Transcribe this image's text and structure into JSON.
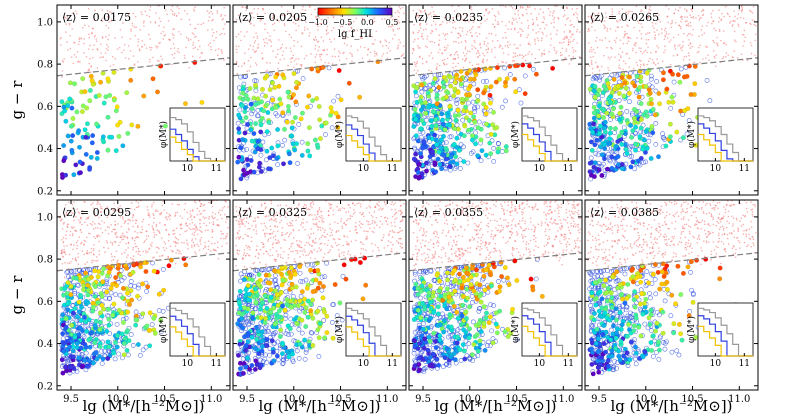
{
  "chart_data": {
    "type": "scatter",
    "layout": "2x4 panel grid, each panel with an inset histogram",
    "xlabel": "lg (M*/[h⁻²M⊙])",
    "ylabel": "g − r",
    "xlim": [
      9.35,
      11.2
    ],
    "ylim": [
      0.18,
      1.08
    ],
    "xticks": [
      "9.5",
      "10.0",
      "10.5",
      "11.0"
    ],
    "yticks": [
      "0.2",
      "0.4",
      "0.6",
      "0.8",
      "1.0"
    ],
    "colorbar": {
      "label": "lg f_HI",
      "colormap": "rainbow (red→orange→yellow→green→cyan→blue→purple)",
      "range": [
        -1.0,
        0.5
      ],
      "ticks": [
        "−1.0",
        "−0.5",
        "0.0",
        "0.5"
      ],
      "placement": "top of second panel"
    },
    "separator_line": {
      "style": "dashed",
      "color": "#808080",
      "x": [
        9.35,
        11.2
      ],
      "y": [
        0.745,
        0.83
      ]
    },
    "red_cloud": {
      "color": "#f07070",
      "y_range": [
        0.76,
        1.05
      ]
    },
    "inset": {
      "ylabel": "φ(M*)",
      "xticks": [
        "10",
        "11"
      ],
      "xlim": [
        9.4,
        11.3
      ],
      "ylim": [
        0,
        1
      ],
      "steps_x": [
        9.4,
        9.6,
        9.8,
        10.0,
        10.2,
        10.4,
        10.6,
        10.8,
        11.0,
        11.3
      ],
      "series_colors": {
        "all": "#999999",
        "blue": "#3040e0",
        "yellow": "#f0c000"
      }
    },
    "panels": [
      {
        "title": "⟨z⟩ = 0.0175",
        "n_red": 320,
        "n_col": 110,
        "n_open": 0,
        "inset": {
          "all": [
            0.82,
            0.78,
            0.7,
            0.55,
            0.35,
            0.18,
            0.05,
            0.0,
            0.0
          ],
          "blue": [
            0.6,
            0.5,
            0.38,
            0.22,
            0.08,
            0.0,
            0.0,
            0.0,
            0.0
          ],
          "yellow": [
            0.45,
            0.35,
            0.22,
            0.12,
            0.0,
            0.0,
            0.0,
            0.0,
            0.0
          ]
        }
      },
      {
        "title": "⟨z⟩ = 0.0205",
        "n_red": 380,
        "n_col": 180,
        "n_open": 90,
        "inset": {
          "all": [
            0.85,
            0.82,
            0.75,
            0.62,
            0.45,
            0.28,
            0.12,
            0.0,
            0.0
          ],
          "blue": [
            0.68,
            0.6,
            0.48,
            0.32,
            0.15,
            0.0,
            0.0,
            0.0,
            0.0
          ],
          "yellow": [
            0.48,
            0.38,
            0.26,
            0.12,
            0.0,
            0.0,
            0.0,
            0.0,
            0.0
          ]
        }
      },
      {
        "title": "⟨z⟩ = 0.0235",
        "n_red": 520,
        "n_col": 300,
        "n_open": 230,
        "inset": {
          "all": [
            0.85,
            0.82,
            0.76,
            0.64,
            0.48,
            0.3,
            0.14,
            0.0,
            0.0
          ],
          "blue": [
            0.7,
            0.62,
            0.5,
            0.36,
            0.18,
            0.0,
            0.0,
            0.0,
            0.0
          ],
          "yellow": [
            0.5,
            0.4,
            0.28,
            0.14,
            0.0,
            0.0,
            0.0,
            0.0,
            0.0
          ]
        }
      },
      {
        "title": "⟨z⟩ = 0.0265",
        "n_red": 450,
        "n_col": 260,
        "n_open": 200,
        "inset": {
          "all": [
            0.85,
            0.82,
            0.76,
            0.65,
            0.5,
            0.32,
            0.16,
            0.0,
            0.0
          ],
          "blue": [
            0.7,
            0.62,
            0.52,
            0.38,
            0.2,
            0.04,
            0.0,
            0.0,
            0.0
          ],
          "yellow": [
            0.5,
            0.4,
            0.3,
            0.16,
            0.0,
            0.0,
            0.0,
            0.0,
            0.0
          ]
        }
      },
      {
        "title": "⟨z⟩ = 0.0295",
        "n_red": 650,
        "n_col": 320,
        "n_open": 300,
        "inset": {
          "all": [
            0.9,
            0.86,
            0.8,
            0.7,
            0.55,
            0.36,
            0.18,
            0.0,
            0.0
          ],
          "blue": [
            0.75,
            0.68,
            0.56,
            0.42,
            0.22,
            0.0,
            0.0,
            0.0,
            0.0
          ],
          "yellow": [
            0.55,
            0.45,
            0.32,
            0.18,
            0.0,
            0.0,
            0.0,
            0.0,
            0.0
          ]
        }
      },
      {
        "title": "⟨z⟩ = 0.0325",
        "n_red": 650,
        "n_col": 300,
        "n_open": 330,
        "inset": {
          "all": [
            0.9,
            0.86,
            0.8,
            0.7,
            0.55,
            0.38,
            0.2,
            0.0,
            0.0
          ],
          "blue": [
            0.75,
            0.68,
            0.58,
            0.44,
            0.24,
            0.0,
            0.0,
            0.0,
            0.0
          ],
          "yellow": [
            0.55,
            0.45,
            0.32,
            0.18,
            0.0,
            0.0,
            0.0,
            0.0,
            0.0
          ]
        }
      },
      {
        "title": "⟨z⟩ = 0.0355",
        "n_red": 700,
        "n_col": 320,
        "n_open": 350,
        "inset": {
          "all": [
            0.9,
            0.87,
            0.82,
            0.72,
            0.58,
            0.4,
            0.2,
            0.0,
            0.0
          ],
          "blue": [
            0.76,
            0.7,
            0.6,
            0.46,
            0.26,
            0.0,
            0.0,
            0.0,
            0.0
          ],
          "yellow": [
            0.56,
            0.46,
            0.34,
            0.2,
            0.0,
            0.0,
            0.0,
            0.0,
            0.0
          ]
        }
      },
      {
        "title": "⟨z⟩ = 0.0385",
        "n_red": 620,
        "n_col": 260,
        "n_open": 320,
        "inset": {
          "all": [
            0.9,
            0.87,
            0.82,
            0.72,
            0.58,
            0.42,
            0.22,
            0.0,
            0.0
          ],
          "blue": [
            0.76,
            0.7,
            0.6,
            0.46,
            0.28,
            0.0,
            0.0,
            0.0,
            0.0
          ],
          "yellow": [
            0.56,
            0.46,
            0.34,
            0.2,
            0.0,
            0.0,
            0.0,
            0.0,
            0.0
          ]
        }
      }
    ]
  }
}
